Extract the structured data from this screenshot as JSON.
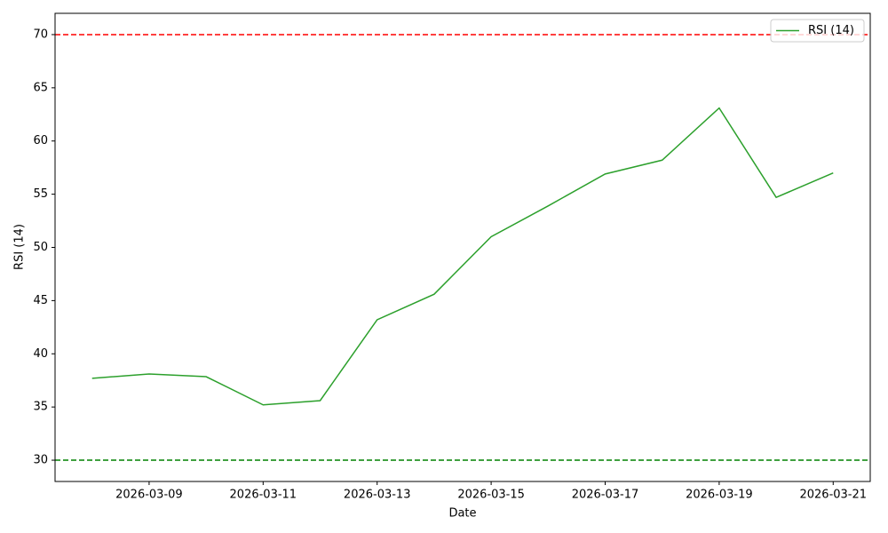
{
  "chart_data": {
    "type": "line",
    "xlabel": "Date",
    "ylabel": "RSI (14)",
    "x": [
      "2026-03-08",
      "2026-03-09",
      "2026-03-10",
      "2026-03-11",
      "2026-03-12",
      "2026-03-13",
      "2026-03-14",
      "2026-03-15",
      "2026-03-16",
      "2026-03-17",
      "2026-03-18",
      "2026-03-19",
      "2026-03-20",
      "2026-03-21"
    ],
    "series": [
      {
        "name": "RSI (14)",
        "color": "#2ca02c",
        "values": [
          37.7,
          38.1,
          37.85,
          35.2,
          35.6,
          43.2,
          45.6,
          51.0,
          53.9,
          56.9,
          58.2,
          63.1,
          54.7,
          57.0
        ]
      }
    ],
    "hlines": [
      {
        "value": 70,
        "color": "#ff0000"
      },
      {
        "value": 30,
        "color": "#008000"
      }
    ],
    "ylim": [
      28,
      72
    ],
    "yticks": [
      30,
      35,
      40,
      45,
      50,
      55,
      60,
      65,
      70
    ],
    "xticks": [
      "2026-03-09",
      "2026-03-11",
      "2026-03-13",
      "2026-03-15",
      "2026-03-17",
      "2026-03-19",
      "2026-03-21"
    ],
    "legend": "upper right"
  }
}
